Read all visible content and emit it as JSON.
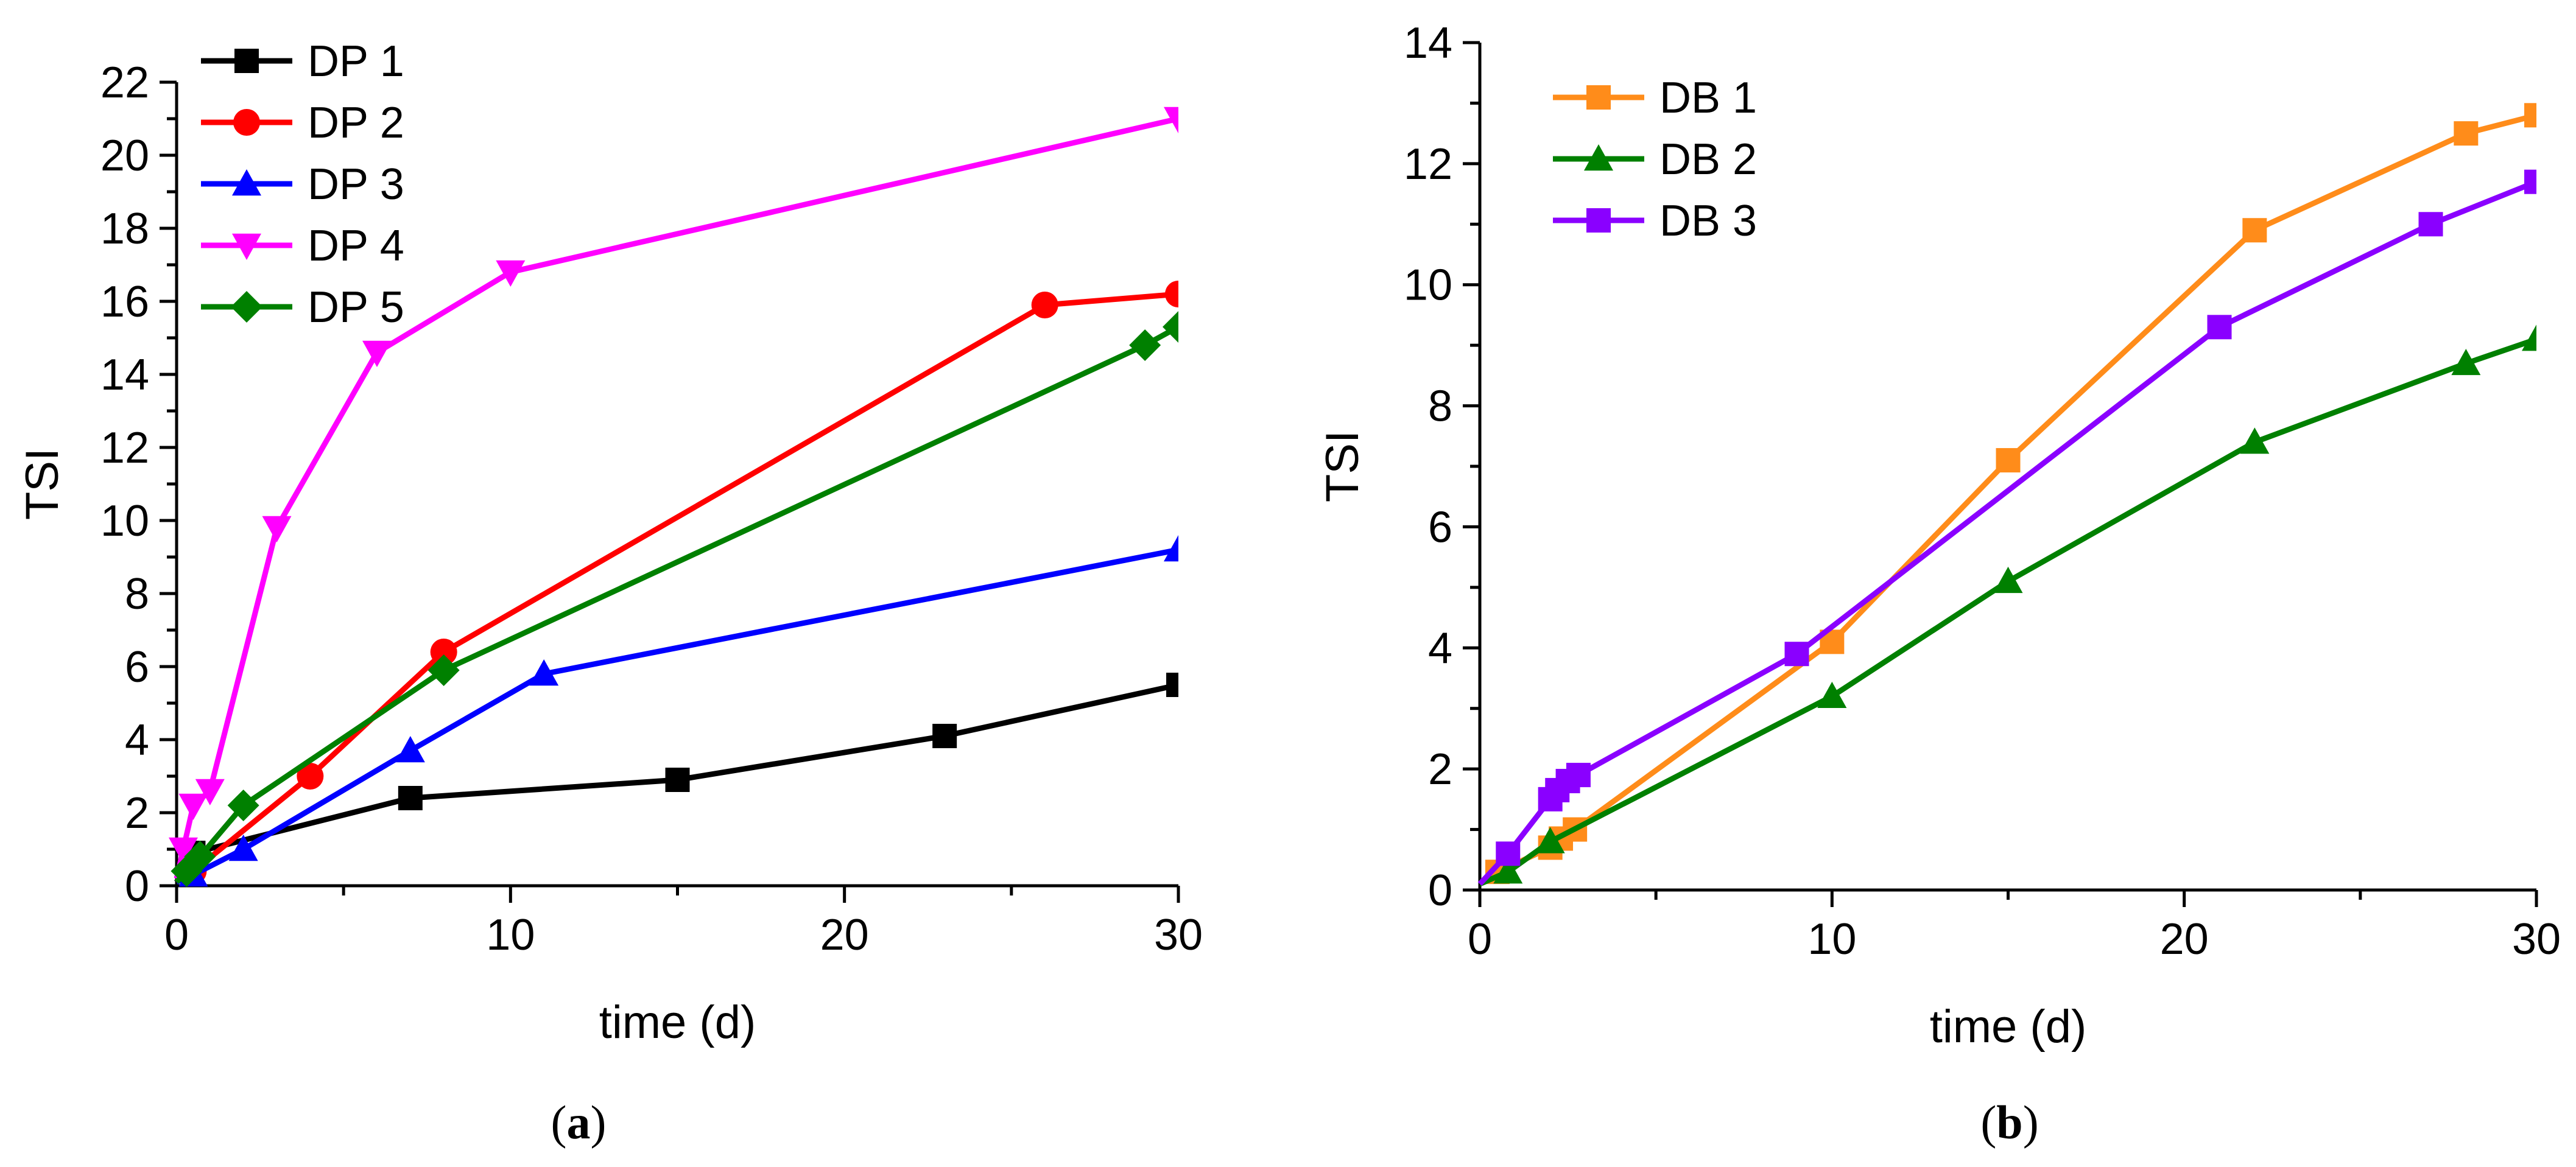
{
  "chart_data": [
    {
      "type": "line",
      "panel": "a",
      "caption_open": "(",
      "caption_letter": "a",
      "caption_close": ")",
      "xlabel": "time (d)",
      "ylabel": "TSI",
      "xlim": [
        0,
        30
      ],
      "ylim": [
        0,
        22
      ],
      "x_ticks": [
        0,
        10,
        20,
        30
      ],
      "y_ticks": [
        0,
        2,
        4,
        6,
        8,
        10,
        12,
        14,
        16,
        18,
        20,
        22
      ],
      "grid": false,
      "legend_placement": "top-left",
      "series": [
        {
          "name": "DP 1",
          "color": "#000000",
          "marker": "square",
          "x": [
            0,
            0.5,
            7,
            15,
            23,
            30
          ],
          "y": [
            0.1,
            0.9,
            2.4,
            2.9,
            4.1,
            5.5
          ]
        },
        {
          "name": "DP 2",
          "color": "#ff0000",
          "marker": "circle",
          "x": [
            0,
            0.5,
            4,
            8,
            26,
            30
          ],
          "y": [
            0.1,
            0.4,
            3.0,
            6.4,
            15.9,
            16.2
          ]
        },
        {
          "name": "DP 3",
          "color": "#0000ff",
          "marker": "triangle-up",
          "x": [
            0,
            0.5,
            2,
            7,
            11,
            30
          ],
          "y": [
            0.1,
            0.3,
            1.0,
            3.7,
            5.8,
            9.2
          ]
        },
        {
          "name": "DP 4",
          "color": "#ff00ff",
          "marker": "triangle-down",
          "x": [
            0,
            0.2,
            0.5,
            1,
            3,
            6,
            10,
            30
          ],
          "y": [
            0.2,
            1.0,
            2.2,
            2.6,
            9.8,
            14.6,
            16.8,
            21.0
          ]
        },
        {
          "name": "DP 5",
          "color": "#008000",
          "marker": "diamond",
          "x": [
            0,
            0.3,
            0.7,
            2,
            8,
            29,
            30
          ],
          "y": [
            0.1,
            0.4,
            0.8,
            2.2,
            5.9,
            14.8,
            15.3
          ]
        }
      ]
    },
    {
      "type": "line",
      "panel": "b",
      "caption_open": "(",
      "caption_letter": "b",
      "caption_close": ")",
      "xlabel": "time (d)",
      "ylabel": "TSI",
      "xlim": [
        0,
        30
      ],
      "ylim": [
        0,
        14
      ],
      "x_ticks": [
        0,
        10,
        20,
        30
      ],
      "y_ticks": [
        0,
        2,
        4,
        6,
        8,
        10,
        12,
        14
      ],
      "grid": false,
      "legend_placement": "top-left",
      "series": [
        {
          "name": "DB 1",
          "color": "#ff8c1a",
          "marker": "square",
          "x": [
            0,
            0.5,
            2,
            2.3,
            2.7,
            10,
            15,
            22,
            28,
            30
          ],
          "y": [
            0.1,
            0.3,
            0.7,
            0.85,
            1.0,
            4.1,
            7.1,
            10.9,
            12.5,
            12.8
          ]
        },
        {
          "name": "DB 2",
          "color": "#008000",
          "marker": "triangle-up",
          "x": [
            0,
            0.8,
            2,
            10,
            15,
            22,
            28,
            30
          ],
          "y": [
            0.1,
            0.3,
            0.8,
            3.2,
            5.1,
            7.4,
            8.7,
            9.1
          ]
        },
        {
          "name": "DB 3",
          "color": "#8a00ff",
          "marker": "square",
          "x": [
            0,
            0.8,
            2,
            2.2,
            2.5,
            2.8,
            9,
            21,
            27,
            30
          ],
          "y": [
            0.1,
            0.6,
            1.5,
            1.65,
            1.8,
            1.9,
            3.9,
            9.3,
            11.0,
            11.7
          ]
        }
      ]
    }
  ]
}
